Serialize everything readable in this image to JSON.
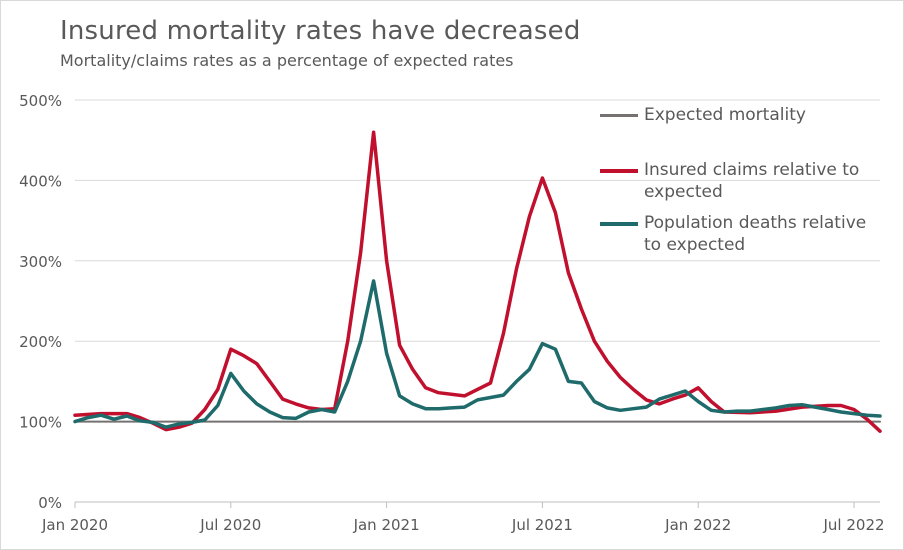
{
  "chart_data": {
    "type": "line",
    "title": "Insured mortality rates have decreased",
    "subtitle": "Mortality/claims rates as a percentage of expected rates",
    "xlabel": "",
    "ylabel": "",
    "ylim": [
      0,
      500
    ],
    "y_ticks": [
      0,
      100,
      200,
      300,
      400,
      500
    ],
    "y_tick_labels": [
      "0%",
      "100%",
      "200%",
      "300%",
      "400%",
      "500%"
    ],
    "x_range": [
      0,
      31
    ],
    "x_ticks": [
      0,
      6,
      12,
      18,
      24,
      30
    ],
    "x_tick_labels": [
      "Jan 2020",
      "Jul 2020",
      "Jan 2021",
      "Jul 2021",
      "Jan 2022",
      "Jul 2022"
    ],
    "x_unit": "months since Jan 2020",
    "grid": true,
    "legend_position": "right",
    "series": [
      {
        "name": "Expected mortality",
        "color": "#767171",
        "x": [
          0,
          31
        ],
        "values": [
          100,
          100
        ]
      },
      {
        "name": "Insured claims relative to expected",
        "color": "#c0102e",
        "x": [
          0,
          1,
          2,
          2.5,
          3,
          3.5,
          4,
          4.5,
          5,
          5.5,
          6,
          6.5,
          7,
          7.5,
          8,
          8.5,
          9,
          9.5,
          10,
          10.5,
          11,
          11.5,
          12,
          12.5,
          13,
          13.5,
          14,
          15,
          15.5,
          16,
          16.5,
          17,
          17.5,
          18,
          18.5,
          19,
          19.5,
          20,
          20.5,
          21,
          21.5,
          22,
          22.5,
          23,
          23.5,
          24,
          24.5,
          25,
          26,
          27,
          28,
          29,
          29.5,
          30,
          30.5,
          31
        ],
        "values": [
          108,
          110,
          110,
          105,
          98,
          90,
          93,
          98,
          115,
          140,
          190,
          182,
          172,
          150,
          128,
          122,
          117,
          115,
          116,
          200,
          310,
          460,
          300,
          195,
          165,
          142,
          136,
          132,
          140,
          148,
          210,
          290,
          355,
          403,
          360,
          285,
          240,
          200,
          175,
          155,
          140,
          127,
          122,
          128,
          133,
          142,
          125,
          112,
          111,
          113,
          118,
          120,
          120,
          115,
          103,
          88
        ]
      },
      {
        "name": "Population deaths relative to expected",
        "color": "#1f6b6b",
        "x": [
          0,
          0.5,
          1,
          1.5,
          2,
          2.5,
          3,
          3.5,
          4,
          4.5,
          5,
          5.5,
          6,
          6.5,
          7,
          7.5,
          8,
          8.5,
          9,
          9.5,
          10,
          10.5,
          11,
          11.5,
          12,
          12.5,
          13,
          13.5,
          14,
          14.5,
          15,
          15.5,
          16,
          16.5,
          17,
          17.5,
          18,
          18.5,
          19,
          19.5,
          20,
          20.5,
          21,
          21.5,
          22,
          22.5,
          23,
          23.5,
          24,
          24.5,
          25,
          25.5,
          26,
          26.5,
          27,
          27.5,
          28,
          28.5,
          29,
          29.5,
          30,
          30.5,
          31
        ],
        "values": [
          100,
          105,
          108,
          103,
          107,
          101,
          99,
          93,
          97,
          99,
          102,
          120,
          160,
          138,
          122,
          112,
          105,
          104,
          112,
          115,
          112,
          150,
          200,
          275,
          185,
          132,
          122,
          116,
          116,
          117,
          118,
          127,
          130,
          133,
          150,
          165,
          197,
          190,
          150,
          148,
          125,
          117,
          114,
          116,
          118,
          128,
          133,
          138,
          125,
          114,
          112,
          113,
          113,
          115,
          117,
          120,
          121,
          118,
          115,
          112,
          110,
          108,
          107
        ]
      }
    ]
  }
}
